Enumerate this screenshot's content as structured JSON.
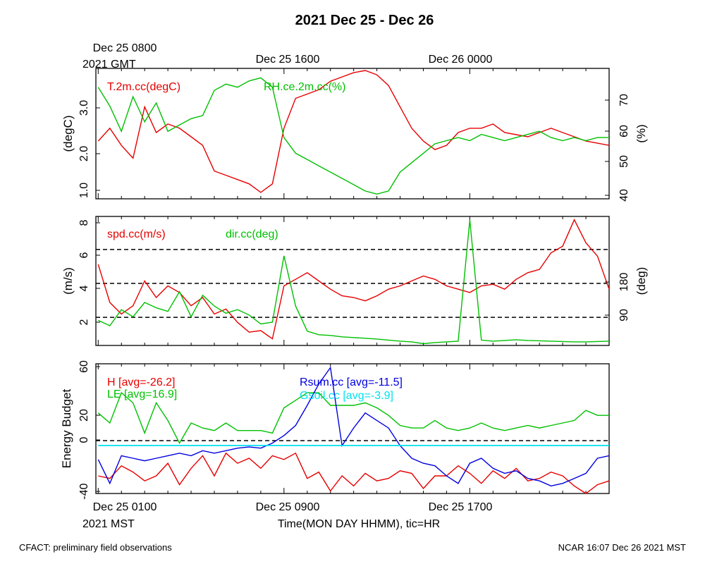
{
  "figure": {
    "title": "2021 Dec 25 - Dec 26",
    "footer_left": "CFACT: preliminary field observations",
    "footer_right": "NCAR 16:07 Dec 26 2021 MST",
    "top_axis": {
      "labels": [
        "Dec 25 0800",
        "Dec 25 1600",
        "Dec 26 0000"
      ],
      "sublabel": "2021 GMT"
    },
    "bottom_axis": {
      "labels": [
        "Dec 25 0100",
        "Dec 25 0900",
        "Dec 25 1700"
      ],
      "sublabel": "2021 MST",
      "xlabel": "Time(MON DAY HHMM), tic=HR"
    }
  },
  "colors": {
    "red": "#e60000",
    "green": "#00c000",
    "blue": "#0000e0",
    "cyan": "#00e0f0",
    "black": "#000000"
  },
  "chart_data": [
    {
      "type": "line",
      "panel": "temperature-humidity",
      "x_unit": "hours since Dec 25 0000 MST",
      "xlim": [
        0.9,
        23.0
      ],
      "ylabel_left": "(degC)",
      "ylabel_right": "(%)",
      "ylim_left": [
        0.95,
        4.0
      ],
      "yticks_left": [
        "1.0",
        "2.0",
        "3.0"
      ],
      "ylim_right": [
        38.5,
        80
      ],
      "yticks_right": [
        "40",
        "50",
        "60",
        "70"
      ],
      "series": [
        {
          "name": "T.2m.cc(degC)",
          "color": "#e60000",
          "axis": "left",
          "x": [
            1.0,
            1.5,
            2.0,
            2.5,
            3.0,
            3.5,
            4.0,
            4.5,
            5.0,
            5.5,
            6.0,
            6.5,
            7.0,
            7.5,
            8.0,
            8.5,
            9.0,
            9.5,
            10.0,
            10.5,
            11.0,
            11.5,
            12.0,
            12.5,
            13.0,
            13.5,
            14.0,
            14.5,
            15.0,
            15.5,
            16.0,
            16.5,
            17.0,
            17.5,
            18.0,
            18.5,
            19.0,
            19.5,
            20.0,
            20.5,
            21.0,
            21.5,
            22.0,
            22.5,
            23.0
          ],
          "y": [
            2.3,
            2.6,
            2.2,
            1.9,
            3.1,
            2.5,
            2.7,
            2.6,
            2.4,
            2.2,
            1.6,
            1.5,
            1.4,
            1.3,
            1.1,
            1.3,
            2.6,
            3.3,
            3.4,
            3.5,
            3.7,
            3.8,
            3.9,
            3.95,
            3.85,
            3.6,
            3.1,
            2.6,
            2.3,
            2.1,
            2.2,
            2.5,
            2.6,
            2.6,
            2.7,
            2.5,
            2.45,
            2.4,
            2.5,
            2.6,
            2.5,
            2.4,
            2.3,
            2.25,
            2.2
          ]
        },
        {
          "name": "RH.ce.2m.cc(%)",
          "color": "#00c000",
          "axis": "right",
          "x": [
            1.0,
            1.5,
            2.0,
            2.5,
            3.0,
            3.5,
            4.0,
            4.5,
            5.0,
            5.5,
            6.0,
            6.5,
            7.0,
            7.5,
            8.0,
            8.5,
            9.0,
            9.5,
            10.0,
            10.5,
            11.0,
            11.5,
            12.0,
            12.5,
            13.0,
            13.5,
            14.0,
            14.5,
            15.0,
            15.5,
            16.0,
            16.5,
            17.0,
            17.5,
            18.0,
            18.5,
            19.0,
            19.5,
            20.0,
            20.5,
            21.0,
            21.5,
            22.0,
            22.5,
            23.0
          ],
          "y": [
            74,
            68,
            60,
            71,
            63,
            69,
            60,
            62,
            64,
            65,
            73,
            75,
            74,
            76,
            77,
            74,
            58,
            53,
            51,
            49,
            47,
            45,
            43,
            41,
            40,
            41,
            47,
            50,
            53,
            56,
            57,
            58,
            57,
            59,
            58,
            57,
            58,
            59,
            60,
            58,
            57,
            58,
            57,
            58,
            58
          ]
        }
      ]
    },
    {
      "type": "line",
      "panel": "wind",
      "x_unit": "hours since Dec 25 0000 MST",
      "xlim": [
        0.9,
        23.0
      ],
      "ylabel_left": "(m/s)",
      "ylabel_right": "(deg)",
      "ylim_left": [
        0.6,
        8.4
      ],
      "yticks_left": [
        "2",
        "4",
        "6",
        "8"
      ],
      "ylim_right": [
        0,
        360
      ],
      "yticks_right": [
        "90",
        "180"
      ],
      "dashed_levels_left": [
        2.3,
        4.35,
        6.4
      ],
      "series": [
        {
          "name": "spd.cc(m/s)",
          "color": "#e60000",
          "axis": "left",
          "x": [
            1.0,
            1.5,
            2.0,
            2.5,
            3.0,
            3.5,
            4.0,
            4.5,
            5.0,
            5.5,
            6.0,
            6.5,
            7.0,
            7.5,
            8.0,
            8.5,
            9.0,
            9.5,
            10.0,
            10.5,
            11.0,
            11.5,
            12.0,
            12.5,
            13.0,
            13.5,
            14.0,
            14.5,
            15.0,
            15.5,
            16.0,
            16.5,
            17.0,
            17.5,
            18.0,
            18.5,
            19.0,
            19.5,
            20.0,
            20.5,
            21.0,
            21.5,
            22.0,
            22.5,
            23.0
          ],
          "y": [
            5.5,
            3.2,
            2.5,
            3.0,
            4.5,
            3.5,
            4.2,
            3.8,
            3.0,
            3.5,
            2.5,
            2.8,
            2.0,
            1.4,
            1.5,
            1.0,
            4.2,
            4.6,
            5.0,
            4.5,
            4.0,
            3.6,
            3.5,
            3.3,
            3.6,
            4.0,
            4.2,
            4.5,
            4.8,
            4.6,
            4.2,
            4.0,
            3.8,
            4.2,
            4.3,
            4.0,
            4.6,
            5.0,
            5.2,
            6.2,
            6.6,
            8.2,
            6.8,
            6.0,
            4.0
          ]
        },
        {
          "name": "dir.cc(deg)",
          "color": "#00c000",
          "axis": "right",
          "x": [
            1.0,
            1.5,
            2.0,
            2.5,
            3.0,
            3.5,
            4.0,
            4.5,
            5.0,
            5.5,
            6.0,
            6.5,
            7.0,
            7.5,
            8.0,
            8.5,
            9.0,
            9.5,
            10.0,
            10.5,
            11.0,
            11.5,
            12.0,
            12.5,
            13.0,
            13.5,
            14.0,
            14.5,
            15.0,
            15.5,
            16.0,
            16.5,
            17.0,
            17.5,
            18.0,
            18.5,
            19.0,
            19.5,
            20.0,
            20.5,
            21.0,
            21.5,
            22.0,
            22.5,
            23.0
          ],
          "y": [
            70,
            55,
            100,
            80,
            120,
            105,
            95,
            150,
            80,
            140,
            110,
            90,
            100,
            85,
            60,
            65,
            250,
            110,
            40,
            30,
            28,
            24,
            22,
            20,
            18,
            15,
            12,
            10,
            5,
            8,
            10,
            12,
            350,
            15,
            12,
            14,
            16,
            14,
            13,
            12,
            11,
            10,
            10,
            11,
            12
          ]
        }
      ]
    },
    {
      "type": "line",
      "panel": "energy-budget",
      "x_unit": "hours since Dec 25 0000 MST",
      "xlim": [
        0.9,
        23.0
      ],
      "ylabel": "Energy Budget",
      "ylim": [
        -42,
        61
      ],
      "yticks": [
        "-40",
        "0",
        "20",
        "60"
      ],
      "dashed_level": 0,
      "series": [
        {
          "name": "H [avg=-26.2]",
          "color": "#e60000",
          "x": [
            1.0,
            1.5,
            2.0,
            2.5,
            3.0,
            3.5,
            4.0,
            4.5,
            5.0,
            5.5,
            6.0,
            6.5,
            7.0,
            7.5,
            8.0,
            8.5,
            9.0,
            9.5,
            10.0,
            10.5,
            11.0,
            11.5,
            12.0,
            12.5,
            13.0,
            13.5,
            14.0,
            14.5,
            15.0,
            15.5,
            16.0,
            16.5,
            17.0,
            17.5,
            18.0,
            18.5,
            19.0,
            19.5,
            20.0,
            20.5,
            21.0,
            21.5,
            22.0,
            22.5,
            23.0
          ],
          "y": [
            -28,
            -30,
            -20,
            -25,
            -32,
            -28,
            -18,
            -35,
            -22,
            -12,
            -28,
            -10,
            -18,
            -14,
            -22,
            -12,
            -15,
            -10,
            -30,
            -25,
            -40,
            -28,
            -36,
            -26,
            -32,
            -30,
            -24,
            -26,
            -38,
            -28,
            -28,
            -20,
            -26,
            -34,
            -24,
            -30,
            -22,
            -32,
            -30,
            -25,
            -28,
            -36,
            -42,
            -35,
            -32
          ]
        },
        {
          "name": "LE [avg=16.9]",
          "color": "#00c000",
          "x": [
            1.0,
            1.5,
            2.0,
            2.5,
            3.0,
            3.5,
            4.0,
            4.5,
            5.0,
            5.5,
            6.0,
            6.5,
            7.0,
            7.5,
            8.0,
            8.5,
            9.0,
            9.5,
            10.0,
            10.5,
            11.0,
            11.5,
            12.0,
            12.5,
            13.0,
            13.5,
            14.0,
            14.5,
            15.0,
            15.5,
            16.0,
            16.5,
            17.0,
            17.5,
            18.0,
            18.5,
            19.0,
            19.5,
            20.0,
            20.5,
            21.0,
            21.5,
            22.0,
            22.5,
            23.0
          ],
          "y": [
            22,
            14,
            38,
            30,
            6,
            30,
            16,
            -2,
            14,
            10,
            8,
            14,
            8,
            8,
            8,
            6,
            26,
            32,
            38,
            38,
            28,
            28,
            28,
            30,
            26,
            20,
            12,
            10,
            10,
            16,
            10,
            8,
            10,
            14,
            10,
            8,
            10,
            12,
            10,
            12,
            14,
            16,
            24,
            20,
            20
          ]
        },
        {
          "name": "Rsum.cc [avg=-11.5]",
          "color": "#0000e0",
          "x": [
            1.0,
            1.5,
            2.0,
            2.5,
            3.0,
            3.5,
            4.0,
            4.5,
            5.0,
            5.5,
            6.0,
            6.5,
            7.0,
            7.5,
            8.0,
            8.5,
            9.0,
            9.5,
            10.0,
            10.5,
            11.0,
            11.5,
            12.0,
            12.5,
            13.0,
            13.5,
            14.0,
            14.5,
            15.0,
            15.5,
            16.0,
            16.5,
            17.0,
            17.5,
            18.0,
            18.5,
            19.0,
            19.5,
            20.0,
            20.5,
            21.0,
            21.5,
            22.0,
            22.5,
            23.0
          ],
          "y": [
            -15,
            -34,
            -12,
            -14,
            -16,
            -14,
            -12,
            -10,
            -12,
            -8,
            -10,
            -8,
            -6,
            -5,
            -6,
            -2,
            4,
            12,
            28,
            45,
            58,
            -4,
            10,
            22,
            16,
            10,
            -4,
            -14,
            -18,
            -20,
            -28,
            -34,
            -18,
            -14,
            -22,
            -26,
            -24,
            -30,
            -32,
            -36,
            -34,
            -30,
            -26,
            -14,
            -12
          ]
        },
        {
          "name": "Gsoil.cc [avg=-3.9]",
          "color": "#00e0f0",
          "x": [
            1.0,
            23.0
          ],
          "y": [
            -3.9,
            -3.9
          ]
        }
      ]
    }
  ]
}
